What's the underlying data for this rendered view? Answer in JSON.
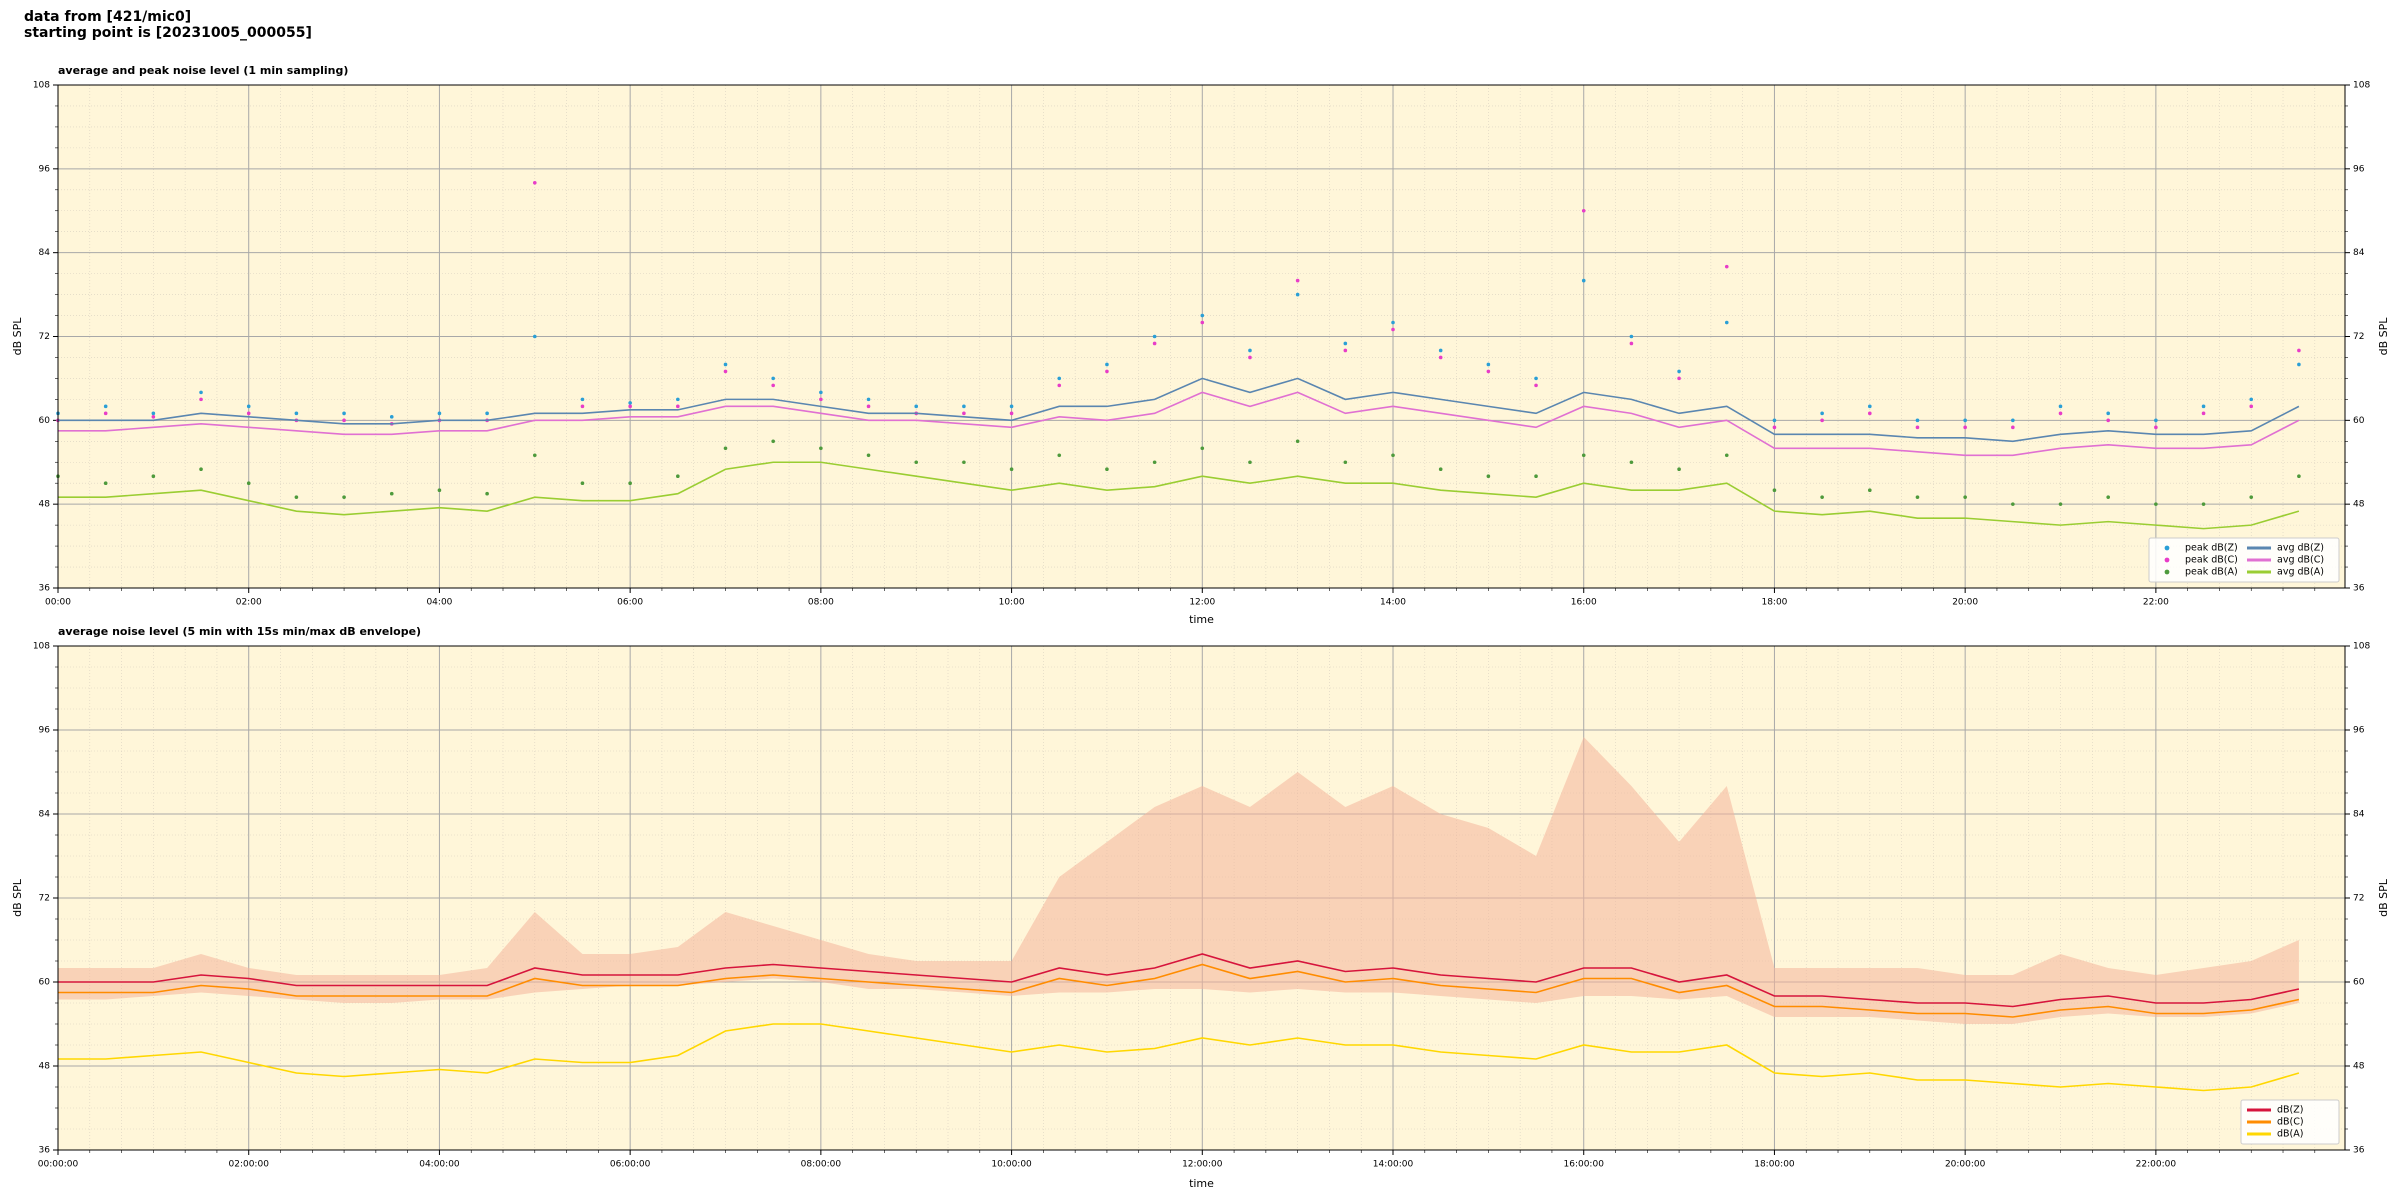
{
  "header": {
    "line1": "data from [421/mic0]",
    "line2": "starting point is [20231005_000055]"
  },
  "chart_data": [
    {
      "type": "line",
      "title": "average and peak noise level (1 min sampling)",
      "xlabel": "time",
      "ylabel": "dB SPL",
      "x": [
        "00:00",
        "00:30",
        "01:00",
        "01:30",
        "02:00",
        "02:30",
        "03:00",
        "03:30",
        "04:00",
        "04:30",
        "05:00",
        "05:30",
        "06:00",
        "06:30",
        "07:00",
        "07:30",
        "08:00",
        "08:30",
        "09:00",
        "09:30",
        "10:00",
        "10:30",
        "11:00",
        "11:30",
        "12:00",
        "12:30",
        "13:00",
        "13:30",
        "14:00",
        "14:30",
        "15:00",
        "15:30",
        "16:00",
        "16:30",
        "17:00",
        "17:30",
        "18:00",
        "18:30",
        "19:00",
        "19:30",
        "20:00",
        "20:30",
        "21:00",
        "21:30",
        "22:00",
        "22:30",
        "23:00",
        "23:30"
      ],
      "xlim": [
        "00:00",
        "23:59"
      ],
      "xticks": [
        "00:00",
        "02:00",
        "04:00",
        "06:00",
        "08:00",
        "10:00",
        "12:00",
        "14:00",
        "16:00",
        "18:00",
        "20:00",
        "22:00"
      ],
      "ylim": [
        36,
        108
      ],
      "yticks": [
        36,
        48,
        60,
        72,
        84,
        96,
        108
      ],
      "grid": true,
      "legend": "lower right",
      "series": [
        {
          "name": "peak dB(Z)",
          "type": "scatter",
          "color": "#2a9fd6",
          "values": [
            61,
            62,
            61,
            64,
            62,
            61,
            61,
            60.5,
            61,
            61,
            72,
            63,
            62.5,
            63,
            68,
            66,
            64,
            63,
            62,
            62,
            62,
            66,
            68,
            72,
            75,
            70,
            78,
            71,
            74,
            70,
            68,
            66,
            80,
            72,
            67,
            74,
            60,
            61,
            62,
            60,
            60,
            60,
            62,
            61,
            60,
            62,
            63,
            68
          ]
        },
        {
          "name": "peak dB(C)",
          "type": "scatter",
          "color": "#e83cc8",
          "values": [
            60,
            61,
            60.5,
            63,
            61,
            60,
            60,
            59.5,
            60,
            60,
            94,
            62,
            62,
            62,
            67,
            65,
            63,
            62,
            61,
            61,
            61,
            65,
            67,
            71,
            74,
            69,
            80,
            70,
            73,
            69,
            67,
            65,
            90,
            71,
            66,
            82,
            59,
            60,
            61,
            59,
            59,
            59,
            61,
            60,
            59,
            61,
            62,
            70
          ]
        },
        {
          "name": "peak dB(A)",
          "type": "scatter",
          "color": "#4e9a3c",
          "values": [
            52,
            51,
            52,
            53,
            51,
            49,
            49,
            49.5,
            50,
            49.5,
            55,
            51,
            51,
            52,
            56,
            57,
            56,
            55,
            54,
            54,
            53,
            55,
            53,
            54,
            56,
            54,
            57,
            54,
            55,
            53,
            52,
            52,
            55,
            54,
            53,
            55,
            50,
            49,
            50,
            49,
            49,
            48,
            48,
            49,
            48,
            48,
            49,
            52
          ]
        },
        {
          "name": "avg dB(Z)",
          "type": "line",
          "color": "#5a86b0",
          "values": [
            60,
            60,
            60,
            61,
            60.5,
            60,
            59.5,
            59.5,
            60,
            60,
            61,
            61,
            61.5,
            61.5,
            63,
            63,
            62,
            61,
            61,
            60.5,
            60,
            62,
            62,
            63,
            66,
            64,
            66,
            63,
            64,
            63,
            62,
            61,
            64,
            63,
            61,
            62,
            58,
            58,
            58,
            57.5,
            57.5,
            57,
            58,
            58.5,
            58,
            58,
            58.5,
            62
          ]
        },
        {
          "name": "avg dB(C)",
          "type": "line",
          "color": "#e070d2",
          "values": [
            58.5,
            58.5,
            59,
            59.5,
            59,
            58.5,
            58,
            58,
            58.5,
            58.5,
            60,
            60,
            60.5,
            60.5,
            62,
            62,
            61,
            60,
            60,
            59.5,
            59,
            60.5,
            60,
            61,
            64,
            62,
            64,
            61,
            62,
            61,
            60,
            59,
            62,
            61,
            59,
            60,
            56,
            56,
            56,
            55.5,
            55,
            55,
            56,
            56.5,
            56,
            56,
            56.5,
            60
          ]
        },
        {
          "name": "avg dB(A)",
          "type": "line",
          "color": "#9acd32",
          "values": [
            49,
            49,
            49.5,
            50,
            48.5,
            47,
            46.5,
            47,
            47.5,
            47,
            49,
            48.5,
            48.5,
            49.5,
            53,
            54,
            54,
            53,
            52,
            51,
            50,
            51,
            50,
            50.5,
            52,
            51,
            52,
            51,
            51,
            50,
            49.5,
            49,
            51,
            50,
            50,
            51,
            47,
            46.5,
            47,
            46,
            46,
            45.5,
            45,
            45.5,
            45,
            44.5,
            45,
            47
          ]
        }
      ]
    },
    {
      "type": "line",
      "title": "average noise level (5 min with 15s min/max dB envelope)",
      "xlabel": "time",
      "ylabel": "dB SPL",
      "x": [
        "00:00:00",
        "00:30:00",
        "01:00:00",
        "01:30:00",
        "02:00:00",
        "02:30:00",
        "03:00:00",
        "03:30:00",
        "04:00:00",
        "04:30:00",
        "05:00:00",
        "05:30:00",
        "06:00:00",
        "06:30:00",
        "07:00:00",
        "07:30:00",
        "08:00:00",
        "08:30:00",
        "09:00:00",
        "09:30:00",
        "10:00:00",
        "10:30:00",
        "11:00:00",
        "11:30:00",
        "12:00:00",
        "12:30:00",
        "13:00:00",
        "13:30:00",
        "14:00:00",
        "14:30:00",
        "15:00:00",
        "15:30:00",
        "16:00:00",
        "16:30:00",
        "17:00:00",
        "17:30:00",
        "18:00:00",
        "18:30:00",
        "19:00:00",
        "19:30:00",
        "20:00:00",
        "20:30:00",
        "21:00:00",
        "21:30:00",
        "22:00:00",
        "22:30:00",
        "23:00:00",
        "23:30:00"
      ],
      "xlim": [
        "00:00:00",
        "23:59:00"
      ],
      "xticks": [
        "00:00:00",
        "02:00:00",
        "04:00:00",
        "06:00:00",
        "08:00:00",
        "10:00:00",
        "12:00:00",
        "14:00:00",
        "16:00:00",
        "18:00:00",
        "20:00:00",
        "22:00:00"
      ],
      "ylim": [
        36,
        108
      ],
      "yticks": [
        36,
        48,
        60,
        72,
        84,
        96,
        108
      ],
      "grid": true,
      "legend": "lower right",
      "envelope": {
        "color": "#f4b49a",
        "min": [
          57.5,
          57.5,
          58,
          58.5,
          58,
          57.5,
          57,
          57,
          57.5,
          57.5,
          58.5,
          59,
          59.5,
          59.5,
          60,
          60.5,
          60,
          59,
          59,
          58.5,
          58,
          58.5,
          58.5,
          59,
          59,
          58.5,
          59,
          58.5,
          58.5,
          58,
          57.5,
          57,
          58,
          58,
          57.5,
          58,
          55,
          55,
          55,
          54.5,
          54,
          54,
          55,
          55.5,
          55,
          55,
          55.5,
          57
        ],
        "max": [
          62,
          62,
          62,
          64,
          62,
          61,
          61,
          61,
          61,
          62,
          70,
          64,
          64,
          65,
          70,
          68,
          66,
          64,
          63,
          63,
          63,
          75,
          80,
          85,
          88,
          85,
          90,
          85,
          88,
          84,
          82,
          78,
          95,
          88,
          80,
          88,
          62,
          62,
          62,
          62,
          61,
          61,
          64,
          62,
          61,
          62,
          63,
          66
        ]
      },
      "series": [
        {
          "name": "dB(Z)",
          "type": "line",
          "color": "#d6143c",
          "values": [
            60,
            60,
            60,
            61,
            60.5,
            59.5,
            59.5,
            59.5,
            59.5,
            59.5,
            62,
            61,
            61,
            61,
            62,
            62.5,
            62,
            61.5,
            61,
            60.5,
            60,
            62,
            61,
            62,
            64,
            62,
            63,
            61.5,
            62,
            61,
            60.5,
            60,
            62,
            62,
            60,
            61,
            58,
            58,
            57.5,
            57,
            57,
            56.5,
            57.5,
            58,
            57,
            57,
            57.5,
            59
          ]
        },
        {
          "name": "dB(C)",
          "type": "line",
          "color": "#ff8c00",
          "values": [
            58.5,
            58.5,
            58.5,
            59.5,
            59,
            58,
            58,
            58,
            58,
            58,
            60.5,
            59.5,
            59.5,
            59.5,
            60.5,
            61,
            60.5,
            60,
            59.5,
            59,
            58.5,
            60.5,
            59.5,
            60.5,
            62.5,
            60.5,
            61.5,
            60,
            60.5,
            59.5,
            59,
            58.5,
            60.5,
            60.5,
            58.5,
            59.5,
            56.5,
            56.5,
            56,
            55.5,
            55.5,
            55,
            56,
            56.5,
            55.5,
            55.5,
            56,
            57.5
          ]
        },
        {
          "name": "dB(A)",
          "type": "line",
          "color": "#ffd700",
          "values": [
            49,
            49,
            49.5,
            50,
            48.5,
            47,
            46.5,
            47,
            47.5,
            47,
            49,
            48.5,
            48.5,
            49.5,
            53,
            54,
            54,
            53,
            52,
            51,
            50,
            51,
            50,
            50.5,
            52,
            51,
            52,
            51,
            51,
            50,
            49.5,
            49,
            51,
            50,
            50,
            51,
            47,
            46.5,
            47,
            46,
            46,
            45.5,
            45,
            45.5,
            45,
            44.5,
            45,
            47
          ]
        }
      ]
    }
  ]
}
